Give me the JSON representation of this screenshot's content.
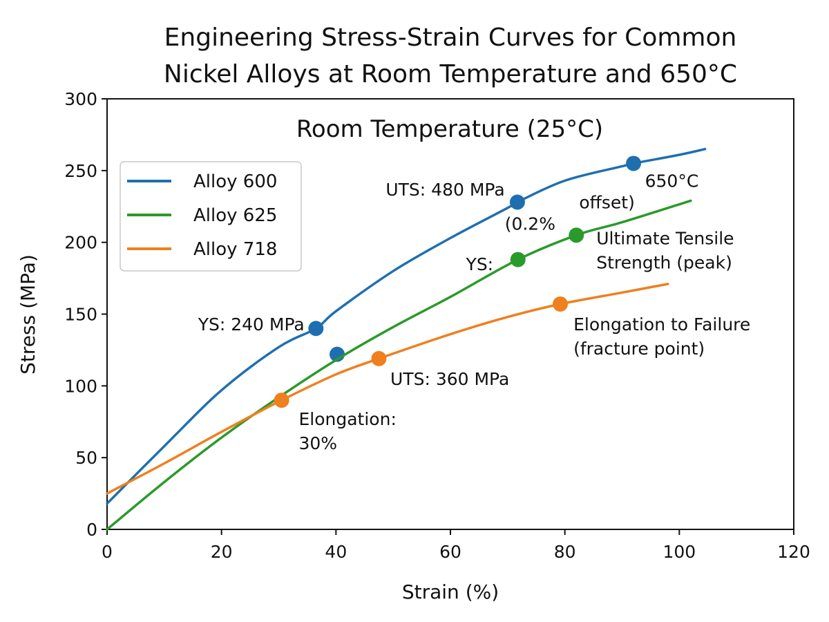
{
  "chart_data": {
    "type": "line",
    "title_lines": [
      "Engineering Stress-Strain Curves for Common",
      "Nickel Alloys at Room Temperature and 650°C"
    ],
    "subtitle": "Room Temperature (25°C)",
    "xlabel": "Strain (%)",
    "ylabel": "Stress (MPa)",
    "xlim": [
      0,
      120
    ],
    "ylim": [
      0,
      300
    ],
    "xticks": [
      0,
      20,
      40,
      60,
      80,
      100,
      120
    ],
    "yticks": [
      0,
      50,
      100,
      150,
      200,
      250,
      300
    ],
    "grid": false,
    "legend_position": "upper-left",
    "series": [
      {
        "name": "Alloy 600",
        "color": "#1f6fb0",
        "x": [
          0,
          10,
          20,
          30,
          36.5,
          40,
          50,
          60,
          70,
          71.7,
          80,
          90,
          92,
          100,
          104.5
        ],
        "y": [
          18,
          58,
          97,
          127,
          140,
          152,
          180,
          203,
          224,
          228,
          243,
          253,
          255,
          261,
          265
        ],
        "markers": [
          {
            "x": 36.5,
            "y": 140
          },
          {
            "x": 40.2,
            "y": 122
          },
          {
            "x": 71.7,
            "y": 228
          },
          {
            "x": 92,
            "y": 255
          }
        ]
      },
      {
        "name": "Alloy 625",
        "color": "#2a9a2a",
        "x": [
          0,
          10,
          20,
          30,
          40,
          50,
          60,
          71.8,
          82,
          90,
          102
        ],
        "y": [
          0,
          33,
          64,
          92,
          118,
          141,
          162,
          188,
          205,
          214,
          229
        ],
        "markers": [
          {
            "x": 71.8,
            "y": 188
          },
          {
            "x": 82,
            "y": 205
          }
        ]
      },
      {
        "name": "Alloy 718",
        "color": "#f07f1e",
        "x": [
          0,
          10,
          20,
          30.5,
          40,
          47.5,
          60,
          70,
          79.2,
          90,
          98
        ],
        "y": [
          25,
          46,
          68,
          90,
          108,
          119,
          136,
          148,
          157,
          165,
          171
        ],
        "markers": [
          {
            "x": 30.5,
            "y": 90
          },
          {
            "x": 47.5,
            "y": 119
          },
          {
            "x": 79.2,
            "y": 157
          }
        ]
      }
    ],
    "annotations": [
      {
        "lines": [
          "YS: 240 MPa"
        ],
        "x": 34.5,
        "y": 143,
        "anchor": "end"
      },
      {
        "lines": [
          "UTS: 480 MPa"
        ],
        "x": 69.5,
        "y": 237,
        "anchor": "end"
      },
      {
        "lines": [
          "offset)"
        ],
        "x": 82.5,
        "y": 228,
        "anchor": "start"
      },
      {
        "lines": [
          "650°C"
        ],
        "x": 94,
        "y": 243,
        "anchor": "start"
      },
      {
        "lines": [
          "(0.2%"
        ],
        "x": 69.5,
        "y": 213,
        "anchor": "start"
      },
      {
        "lines": [
          "YS:"
        ],
        "x": 67.5,
        "y": 185,
        "anchor": "end"
      },
      {
        "lines": [
          "Ultimate Tensile",
          "Strength (peak)"
        ],
        "x": 85.5,
        "y": 203,
        "anchor": "start"
      },
      {
        "lines": [
          "Elongation to Failure",
          "(fracture point)"
        ],
        "x": 81.5,
        "y": 143,
        "anchor": "start"
      },
      {
        "lines": [
          "UTS: 360 MPa"
        ],
        "x": 49.5,
        "y": 105,
        "anchor": "start"
      },
      {
        "lines": [
          "Elongation:",
          "30%"
        ],
        "x": 33.5,
        "y": 77,
        "anchor": "start"
      }
    ]
  }
}
